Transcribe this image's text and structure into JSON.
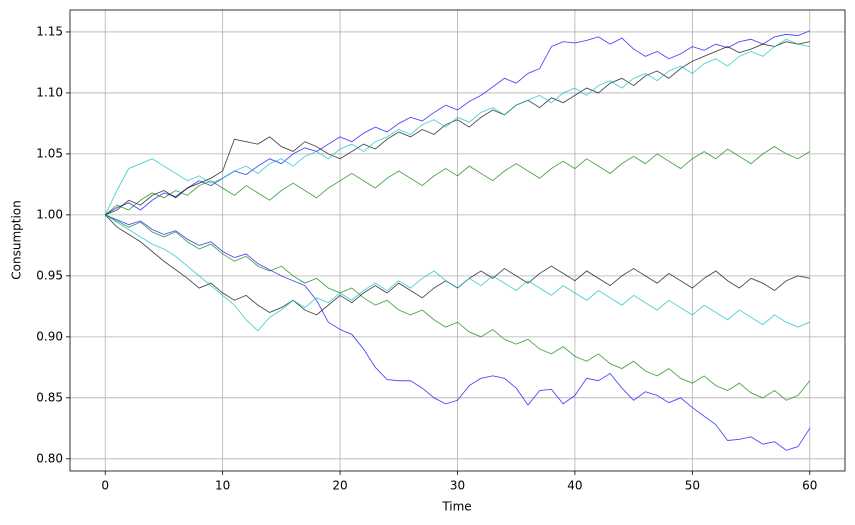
{
  "chart_data": {
    "type": "line",
    "xlabel": "Time",
    "ylabel": "Consumption",
    "x": [
      0,
      1,
      2,
      3,
      4,
      5,
      6,
      7,
      8,
      9,
      10,
      11,
      12,
      13,
      14,
      15,
      16,
      17,
      18,
      19,
      20,
      21,
      22,
      23,
      24,
      25,
      26,
      27,
      28,
      29,
      30,
      31,
      32,
      33,
      34,
      35,
      36,
      37,
      38,
      39,
      40,
      41,
      42,
      43,
      44,
      45,
      46,
      47,
      48,
      49,
      50,
      51,
      52,
      53,
      54,
      55,
      56,
      57,
      58,
      59,
      60
    ],
    "series": [
      {
        "color": "#0000ff",
        "values": [
          1.0,
          1.006,
          1.01,
          1.004,
          1.012,
          1.018,
          1.015,
          1.022,
          1.028,
          1.024,
          1.03,
          1.036,
          1.033,
          1.04,
          1.046,
          1.042,
          1.05,
          1.055,
          1.052,
          1.058,
          1.064,
          1.06,
          1.067,
          1.072,
          1.068,
          1.075,
          1.08,
          1.077,
          1.084,
          1.09,
          1.086,
          1.093,
          1.098,
          1.105,
          1.112,
          1.108,
          1.116,
          1.12,
          1.138,
          1.142,
          1.141,
          1.143,
          1.146,
          1.14,
          1.145,
          1.136,
          1.13,
          1.134,
          1.128,
          1.132,
          1.138,
          1.135,
          1.14,
          1.137,
          1.142,
          1.144,
          1.14,
          1.146,
          1.148,
          1.147,
          1.151
        ]
      },
      {
        "color": "#0000ff",
        "values": [
          1.0,
          0.996,
          0.992,
          0.995,
          0.988,
          0.984,
          0.987,
          0.98,
          0.975,
          0.978,
          0.97,
          0.965,
          0.968,
          0.96,
          0.955,
          0.95,
          0.946,
          0.942,
          0.93,
          0.912,
          0.906,
          0.902,
          0.89,
          0.875,
          0.865,
          0.864,
          0.864,
          0.858,
          0.85,
          0.845,
          0.848,
          0.86,
          0.866,
          0.868,
          0.866,
          0.858,
          0.844,
          0.856,
          0.857,
          0.845,
          0.852,
          0.866,
          0.864,
          0.87,
          0.858,
          0.848,
          0.855,
          0.852,
          0.846,
          0.85,
          0.842,
          0.835,
          0.828,
          0.815,
          0.816,
          0.818,
          0.812,
          0.814,
          0.807,
          0.81,
          0.825
        ]
      },
      {
        "color": "#000000",
        "values": [
          1.0,
          1.004,
          1.012,
          1.008,
          1.016,
          1.02,
          1.014,
          1.022,
          1.026,
          1.03,
          1.036,
          1.062,
          1.06,
          1.058,
          1.064,
          1.056,
          1.052,
          1.06,
          1.056,
          1.05,
          1.046,
          1.052,
          1.058,
          1.054,
          1.062,
          1.068,
          1.064,
          1.07,
          1.066,
          1.074,
          1.078,
          1.072,
          1.08,
          1.086,
          1.082,
          1.09,
          1.094,
          1.088,
          1.096,
          1.092,
          1.098,
          1.104,
          1.1,
          1.108,
          1.112,
          1.106,
          1.114,
          1.118,
          1.112,
          1.12,
          1.126,
          1.13,
          1.134,
          1.138,
          1.133,
          1.136,
          1.14,
          1.138,
          1.142,
          1.14,
          1.142
        ]
      },
      {
        "color": "#008000",
        "values": [
          1.0,
          0.995,
          0.99,
          0.994,
          0.986,
          0.982,
          0.986,
          0.978,
          0.972,
          0.976,
          0.968,
          0.962,
          0.966,
          0.958,
          0.954,
          0.958,
          0.95,
          0.944,
          0.948,
          0.94,
          0.936,
          0.94,
          0.932,
          0.926,
          0.93,
          0.922,
          0.918,
          0.922,
          0.914,
          0.908,
          0.912,
          0.904,
          0.9,
          0.906,
          0.898,
          0.894,
          0.898,
          0.89,
          0.886,
          0.892,
          0.884,
          0.88,
          0.886,
          0.878,
          0.874,
          0.88,
          0.872,
          0.868,
          0.874,
          0.866,
          0.862,
          0.868,
          0.86,
          0.856,
          0.862,
          0.854,
          0.85,
          0.856,
          0.848,
          0.852,
          0.864
        ]
      },
      {
        "color": "#00bfbf",
        "values": [
          1.0,
          1.02,
          1.038,
          1.042,
          1.046,
          1.04,
          1.034,
          1.028,
          1.032,
          1.026,
          1.03,
          1.036,
          1.04,
          1.034,
          1.042,
          1.046,
          1.04,
          1.048,
          1.052,
          1.046,
          1.054,
          1.058,
          1.052,
          1.06,
          1.064,
          1.07,
          1.066,
          1.074,
          1.078,
          1.072,
          1.08,
          1.076,
          1.084,
          1.088,
          1.082,
          1.09,
          1.094,
          1.098,
          1.092,
          1.1,
          1.104,
          1.098,
          1.106,
          1.11,
          1.104,
          1.112,
          1.116,
          1.11,
          1.118,
          1.122,
          1.116,
          1.124,
          1.128,
          1.122,
          1.13,
          1.134,
          1.13,
          1.138,
          1.144,
          1.14,
          1.138
        ]
      },
      {
        "color": "#000000",
        "values": [
          1.0,
          0.99,
          0.984,
          0.978,
          0.97,
          0.962,
          0.955,
          0.948,
          0.94,
          0.944,
          0.936,
          0.93,
          0.934,
          0.926,
          0.92,
          0.924,
          0.93,
          0.922,
          0.918,
          0.926,
          0.934,
          0.928,
          0.936,
          0.942,
          0.936,
          0.944,
          0.938,
          0.932,
          0.94,
          0.946,
          0.94,
          0.948,
          0.954,
          0.948,
          0.956,
          0.95,
          0.944,
          0.952,
          0.958,
          0.952,
          0.946,
          0.954,
          0.948,
          0.942,
          0.95,
          0.956,
          0.95,
          0.944,
          0.952,
          0.946,
          0.94,
          0.948,
          0.954,
          0.946,
          0.94,
          0.948,
          0.944,
          0.938,
          0.946,
          0.95,
          0.948
        ]
      },
      {
        "color": "#008000",
        "values": [
          1.0,
          1.008,
          1.004,
          1.012,
          1.018,
          1.014,
          1.02,
          1.016,
          1.024,
          1.028,
          1.022,
          1.016,
          1.024,
          1.018,
          1.012,
          1.02,
          1.026,
          1.02,
          1.014,
          1.022,
          1.028,
          1.034,
          1.028,
          1.022,
          1.03,
          1.036,
          1.03,
          1.024,
          1.032,
          1.038,
          1.032,
          1.04,
          1.034,
          1.028,
          1.036,
          1.042,
          1.036,
          1.03,
          1.038,
          1.044,
          1.038,
          1.046,
          1.04,
          1.034,
          1.042,
          1.048,
          1.042,
          1.05,
          1.044,
          1.038,
          1.046,
          1.052,
          1.046,
          1.054,
          1.048,
          1.042,
          1.05,
          1.056,
          1.05,
          1.046,
          1.052
        ]
      },
      {
        "color": "#00bfbf",
        "values": [
          1.0,
          0.994,
          0.988,
          0.982,
          0.976,
          0.972,
          0.966,
          0.958,
          0.95,
          0.942,
          0.934,
          0.926,
          0.914,
          0.905,
          0.916,
          0.922,
          0.93,
          0.924,
          0.932,
          0.928,
          0.936,
          0.93,
          0.938,
          0.944,
          0.938,
          0.946,
          0.94,
          0.948,
          0.954,
          0.946,
          0.94,
          0.948,
          0.942,
          0.95,
          0.944,
          0.938,
          0.946,
          0.94,
          0.934,
          0.942,
          0.936,
          0.93,
          0.938,
          0.932,
          0.926,
          0.934,
          0.928,
          0.922,
          0.93,
          0.924,
          0.918,
          0.926,
          0.92,
          0.914,
          0.922,
          0.916,
          0.91,
          0.918,
          0.912,
          0.908,
          0.912
        ]
      }
    ],
    "xlim": [
      -3,
      63
    ],
    "ylim": [
      0.79,
      1.168
    ],
    "xticks": [
      0,
      10,
      20,
      30,
      40,
      50,
      60
    ],
    "yticks": [
      {
        "value": 0.8,
        "label": "0.80"
      },
      0.85,
      {
        "value": 0.9,
        "label": "0.90"
      },
      0.95,
      {
        "value": 1.0,
        "label": "1.00"
      },
      1.05,
      {
        "value": 1.1,
        "label": "1.10"
      },
      1.15
    ],
    "grid": true
  }
}
